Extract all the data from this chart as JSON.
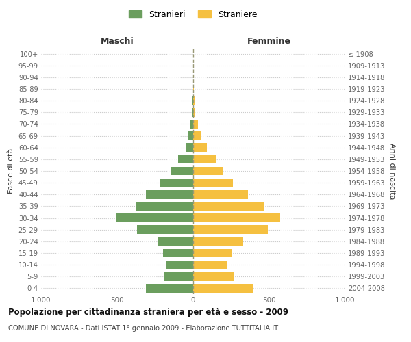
{
  "age_groups": [
    "0-4",
    "5-9",
    "10-14",
    "15-19",
    "20-24",
    "25-29",
    "30-34",
    "35-39",
    "40-44",
    "45-49",
    "50-54",
    "55-59",
    "60-64",
    "65-69",
    "70-74",
    "75-79",
    "80-84",
    "85-89",
    "90-94",
    "95-99",
    "100+"
  ],
  "birth_years": [
    "2004-2008",
    "1999-2003",
    "1994-1998",
    "1989-1993",
    "1984-1988",
    "1979-1983",
    "1974-1978",
    "1969-1973",
    "1964-1968",
    "1959-1963",
    "1954-1958",
    "1949-1953",
    "1944-1948",
    "1939-1943",
    "1934-1938",
    "1929-1933",
    "1924-1928",
    "1919-1923",
    "1914-1918",
    "1909-1913",
    "≤ 1908"
  ],
  "maschi": [
    310,
    190,
    180,
    200,
    230,
    370,
    510,
    380,
    310,
    220,
    150,
    100,
    50,
    30,
    20,
    8,
    5,
    2,
    0,
    0,
    0
  ],
  "femmine": [
    390,
    270,
    220,
    250,
    330,
    490,
    570,
    470,
    360,
    260,
    200,
    150,
    90,
    50,
    30,
    10,
    8,
    3,
    2,
    0,
    0
  ],
  "male_color": "#6b9e5e",
  "female_color": "#f5c040",
  "title_main": "Popolazione per cittadinanza straniera per età e sesso - 2009",
  "title_sub": "COMUNE DI NOVARA - Dati ISTAT 1° gennaio 2009 - Elaborazione TUTTITALIA.IT",
  "ylabel_left": "Fasce di età",
  "ylabel_right": "Anni di nascita",
  "xlabel_left": "Maschi",
  "xlabel_right": "Femmine",
  "legend_male": "Stranieri",
  "legend_female": "Straniere",
  "xlim": 1000,
  "background_color": "#ffffff",
  "grid_color": "#cccccc"
}
